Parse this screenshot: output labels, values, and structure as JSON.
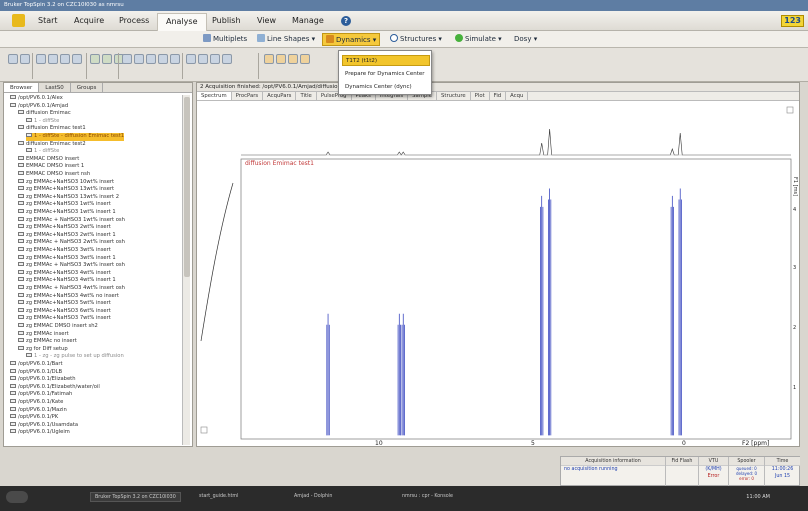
{
  "window_title": "Bruker TopSpin 3.2 on CZC10I030 as nmrsu",
  "menu": [
    "Start",
    "Acquire",
    "Process",
    "Analyse",
    "Publish",
    "View",
    "Manage"
  ],
  "menu_active": "Analyse",
  "help_label": "?",
  "badge": "123",
  "ribbon": {
    "multiplets": "Multiplets",
    "line_shapes": "Line Shapes ▾",
    "dynamics": "Dynamics ▾",
    "structures": "Structures ▾",
    "simulate": "Simulate ▾",
    "dosy": "Dosy ▾"
  },
  "dropdown": [
    "T1T2 (t1t2)",
    "Prepare for Dynamics Center",
    "Dynamics Center (dync)"
  ],
  "browser_tabs": [
    "Browser",
    "LastS0",
    "Groups"
  ],
  "tree": [
    {
      "label": "/opt/PV6.0.1/Alex",
      "indent": 0,
      "style": ""
    },
    {
      "label": "/opt/PV6.0.1/Amjad",
      "indent": 0,
      "style": ""
    },
    {
      "label": "diffusion Emimac",
      "indent": 1,
      "style": ""
    },
    {
      "label": "1 - diffSte",
      "indent": 2,
      "style": "grey"
    },
    {
      "label": "diffusion Emimac test1",
      "indent": 1,
      "style": ""
    },
    {
      "label": "1 - diffSte - diffusion Emimac test1",
      "indent": 2,
      "style": "sel"
    },
    {
      "label": "diffusion Emimac test2",
      "indent": 1,
      "style": ""
    },
    {
      "label": "1 - diffSte",
      "indent": 2,
      "style": "grey"
    },
    {
      "label": "EMMAC DMSO insert",
      "indent": 1,
      "style": ""
    },
    {
      "label": "EMMAC DMSO insert 1",
      "indent": 1,
      "style": ""
    },
    {
      "label": "EMMAC DMSO insert nsh",
      "indent": 1,
      "style": ""
    },
    {
      "label": "zg EMMAc+NaHSO3 10wt% insert",
      "indent": 1,
      "style": ""
    },
    {
      "label": "zg EMMAc+NaHSO3 13wt% insert",
      "indent": 1,
      "style": ""
    },
    {
      "label": "zg EMMAc+NaHSO3 13wt% insert 2",
      "indent": 1,
      "style": ""
    },
    {
      "label": "zg EMMAc+NaHSO3 1wt% insert",
      "indent": 1,
      "style": ""
    },
    {
      "label": "zg EMMAc+NaHSO3 1wt% insert 1",
      "indent": 1,
      "style": ""
    },
    {
      "label": "zg EMMAc + NaHSO3 1wt% insert osh",
      "indent": 1,
      "style": ""
    },
    {
      "label": "zg EMMAc+NaHSO3 2wt% insert",
      "indent": 1,
      "style": ""
    },
    {
      "label": "zg EMMAc+NaHSO3 2wt% insert 1",
      "indent": 1,
      "style": ""
    },
    {
      "label": "zg EMMAc + NaHSO3 2wt% insert osh",
      "indent": 1,
      "style": ""
    },
    {
      "label": "zg EMMAc+NaHSO3 3wt% insert",
      "indent": 1,
      "style": ""
    },
    {
      "label": "zg EMMAc+NaHSO3 3wt% insert 1",
      "indent": 1,
      "style": ""
    },
    {
      "label": "zg EMMAc + NaHSO3 3wt% insert osh",
      "indent": 1,
      "style": ""
    },
    {
      "label": "zg EMMAc+NaHSO3 4wt% insert",
      "indent": 1,
      "style": ""
    },
    {
      "label": "zg EMMAc+NaHSO3 4wt% insert 1",
      "indent": 1,
      "style": ""
    },
    {
      "label": "zg EMMAc + NaHSO3 4wt% insert osh",
      "indent": 1,
      "style": ""
    },
    {
      "label": "zg EMMAc+NaHSO3 4wt% no insert",
      "indent": 1,
      "style": ""
    },
    {
      "label": "zg EMMAc+NaHSO3 5wt% insert",
      "indent": 1,
      "style": ""
    },
    {
      "label": "zg EMMAc+NaHSO3 6wt% insert",
      "indent": 1,
      "style": ""
    },
    {
      "label": "zg EMMAc+NaHSO3 7wt% insert",
      "indent": 1,
      "style": ""
    },
    {
      "label": "zg EMMAC DMSO insert sh2",
      "indent": 1,
      "style": ""
    },
    {
      "label": "zg EMMAc insert",
      "indent": 1,
      "style": ""
    },
    {
      "label": "zg EMMAc no insert",
      "indent": 1,
      "style": ""
    },
    {
      "label": "zg for Diff setup",
      "indent": 1,
      "style": ""
    },
    {
      "label": "1 - zg - zg pulse to set up diffusion",
      "indent": 2,
      "style": "grey"
    },
    {
      "label": "/opt/PV6.0.1/Bart",
      "indent": 0,
      "style": ""
    },
    {
      "label": "/opt/PV6.0.1/DLB",
      "indent": 0,
      "style": ""
    },
    {
      "label": "/opt/PV6.0.1/Elizabeth",
      "indent": 0,
      "style": ""
    },
    {
      "label": "/opt/PV6.0.1/Elizabeth/water/oil",
      "indent": 0,
      "style": ""
    },
    {
      "label": "/opt/PV6.0.1/Fatimah",
      "indent": 0,
      "style": ""
    },
    {
      "label": "/opt/PV6.0.1/Kate",
      "indent": 0,
      "style": ""
    },
    {
      "label": "/opt/PV6.0.1/Mazin",
      "indent": 0,
      "style": ""
    },
    {
      "label": "/opt/PV6.0.1/PK",
      "indent": 0,
      "style": ""
    },
    {
      "label": "/opt/PV6.0.1/Usamdata",
      "indent": 0,
      "style": ""
    },
    {
      "label": "/opt/PV6.0.1/Ugleim",
      "indent": 0,
      "style": ""
    }
  ],
  "dataset_title": "2  Acquisition finished: /opt/PV6.0.1/Amjad/diffusion Emimac test1/1/pdata/1",
  "spectrum_tabs": [
    "Spectrum",
    "ProcPars",
    "AcquPars",
    "Title",
    "PulseProg",
    "Peaks",
    "Integrals",
    "Sample",
    "Structure",
    "Plot",
    "Fid",
    "Acqu"
  ],
  "plot": {
    "dataset_label": "diffusion Emimac test1",
    "x_label": "F2 [ppm]",
    "x_ticks": [
      "10",
      "5",
      "0"
    ],
    "y_label": "F1 [ms]",
    "y_ticks": [
      "4",
      "3",
      "2",
      "1"
    ]
  },
  "chart_data": {
    "type": "line",
    "title": "diffusion Emimac test1",
    "xlabel": "F2 [ppm]",
    "ylabel": "F1 [ms]",
    "xlim": [
      12.2,
      -1.7
    ],
    "ylim": [
      0.7,
      4.5
    ],
    "peaks_ppm": [
      10.0,
      8.2,
      8.1,
      4.6,
      4.4,
      1.3,
      1.1
    ]
  },
  "status": {
    "acq_header": "Acquisition information",
    "acq_value": "no acquisition running",
    "fid_header": "Fid Flash",
    "vtu_header": "VTU",
    "vtu_lines": [
      "(K/MH)",
      "Error"
    ],
    "spooler_header": "Spooler",
    "spooler_lines": [
      "queued: 0",
      "delayed: 0",
      "error: 0"
    ],
    "time_header": "Time",
    "time_lines": [
      "11:00:26",
      "Jun 15"
    ]
  },
  "taskbar": {
    "items": [
      "Bruker TopSpin 3.2 on CZC10I030",
      "start_guide.html",
      "Amjad - Dolphin",
      "nmrsu : cpr - Konsole"
    ],
    "clock": "11:00 AM"
  }
}
